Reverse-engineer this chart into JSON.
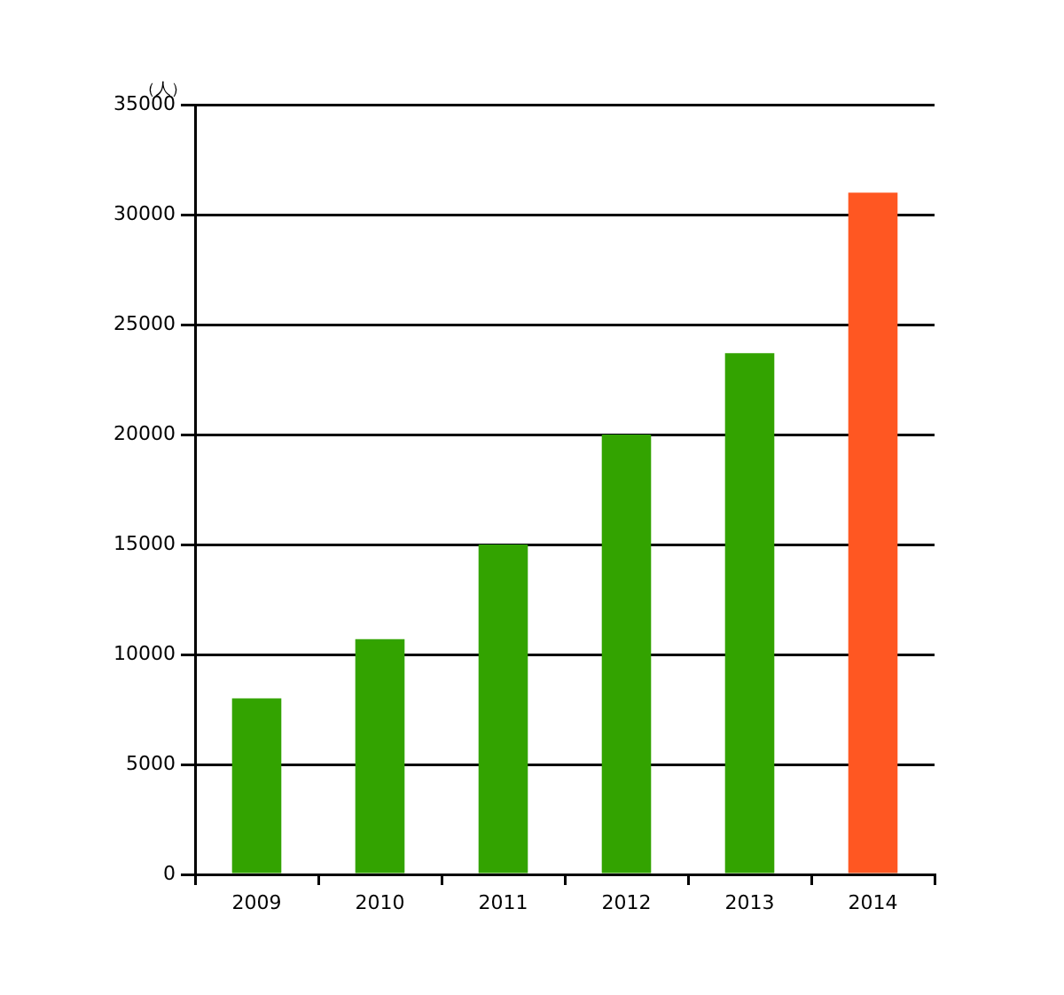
{
  "chart_data": {
    "type": "bar",
    "ylabel": "（人）",
    "categories": [
      "2009",
      "2010",
      "2011",
      "2012",
      "2013",
      "2014"
    ],
    "values": [
      8000,
      10700,
      15000,
      20000,
      23700,
      31000
    ],
    "colors": [
      "#33a300",
      "#33a300",
      "#33a300",
      "#33a300",
      "#33a300",
      "#ff5722"
    ],
    "ylim": [
      0,
      35000
    ],
    "yticks": [
      0,
      5000,
      10000,
      15000,
      20000,
      25000,
      30000,
      35000
    ],
    "grid": "y"
  }
}
